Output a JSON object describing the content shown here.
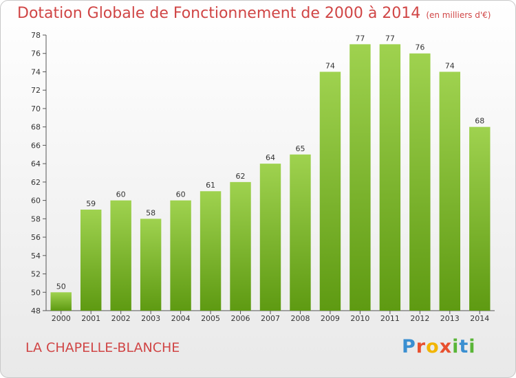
{
  "title": "Dotation Globale de Fonctionnement de 2000 à 2014",
  "unit": "(en milliers d'€)",
  "commune": "LA CHAPELLE-BLANCHE",
  "logo": {
    "letters": [
      "P",
      "r",
      "o",
      "x",
      "i",
      "t",
      "i"
    ],
    "colors": [
      "#3a8fd1",
      "#e8502f",
      "#f2b500",
      "#e8502f",
      "#59b537",
      "#3a8fd1",
      "#59b537"
    ]
  },
  "colors": {
    "bar_top": "#9fd24f",
    "bar_bottom": "#5e9a12",
    "title": "#d04545"
  },
  "chart_data": {
    "type": "bar",
    "categories": [
      "2000",
      "2001",
      "2002",
      "2003",
      "2004",
      "2005",
      "2006",
      "2007",
      "2008",
      "2009",
      "2010",
      "2011",
      "2012",
      "2013",
      "2014"
    ],
    "values": [
      50,
      59,
      60,
      58,
      60,
      61,
      62,
      64,
      65,
      74,
      77,
      77,
      76,
      74,
      68
    ],
    "ylim": [
      48,
      78
    ],
    "yticks": [
      48,
      50,
      52,
      54,
      56,
      58,
      60,
      62,
      64,
      66,
      68,
      70,
      72,
      74,
      76,
      78
    ],
    "grid": false,
    "legend": "none"
  }
}
